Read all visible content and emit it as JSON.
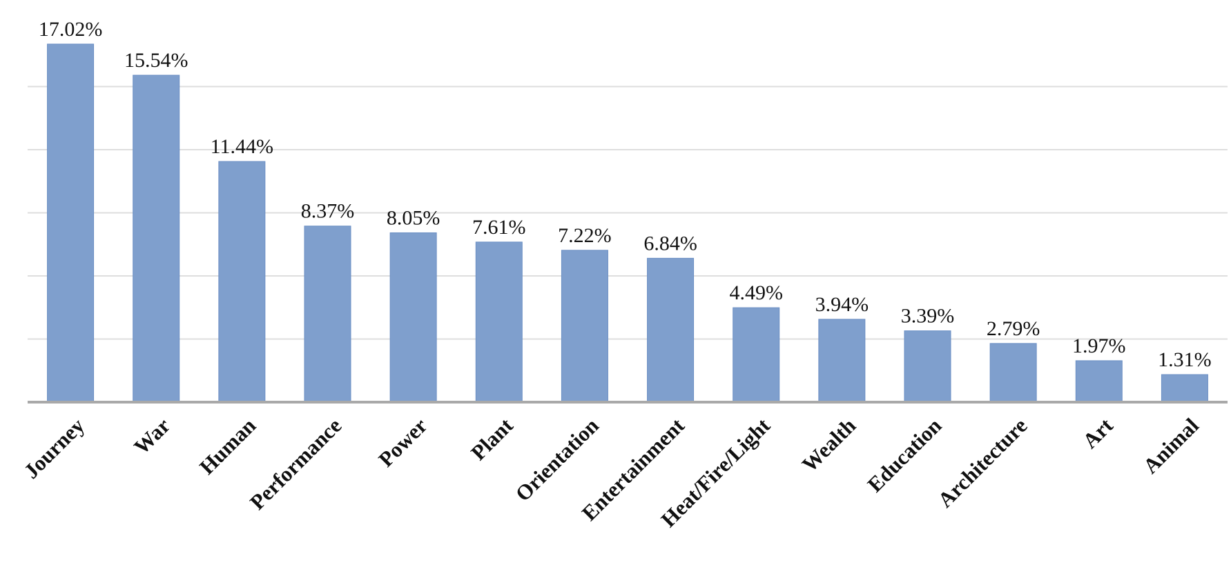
{
  "chart_data": {
    "type": "bar",
    "categories": [
      "Journey",
      "War",
      "Human",
      "Performance",
      "Power",
      "Plant",
      "Orientation",
      "Entertainment",
      "Heat/Fire/Light",
      "Wealth",
      "Education",
      "Architecture",
      "Art",
      "Animal"
    ],
    "values": [
      17.02,
      15.54,
      11.44,
      8.37,
      8.05,
      7.61,
      7.22,
      6.84,
      4.49,
      3.94,
      3.39,
      2.79,
      1.97,
      1.31
    ],
    "data_labels": [
      "17.02%",
      "15.54%",
      "11.44%",
      "8.37%",
      "8.05%",
      "7.61%",
      "7.22%",
      "6.84%",
      "4.49%",
      "3.94%",
      "3.39%",
      "2.79%",
      "1.97%",
      "1.31%"
    ],
    "ylim": [
      0,
      18
    ],
    "grid": true,
    "bar_color": "#7f9fcd",
    "bar_border_color": "#6b8fc4",
    "gridline_color": "#dedede",
    "axis_color": "#a9a9a9"
  }
}
